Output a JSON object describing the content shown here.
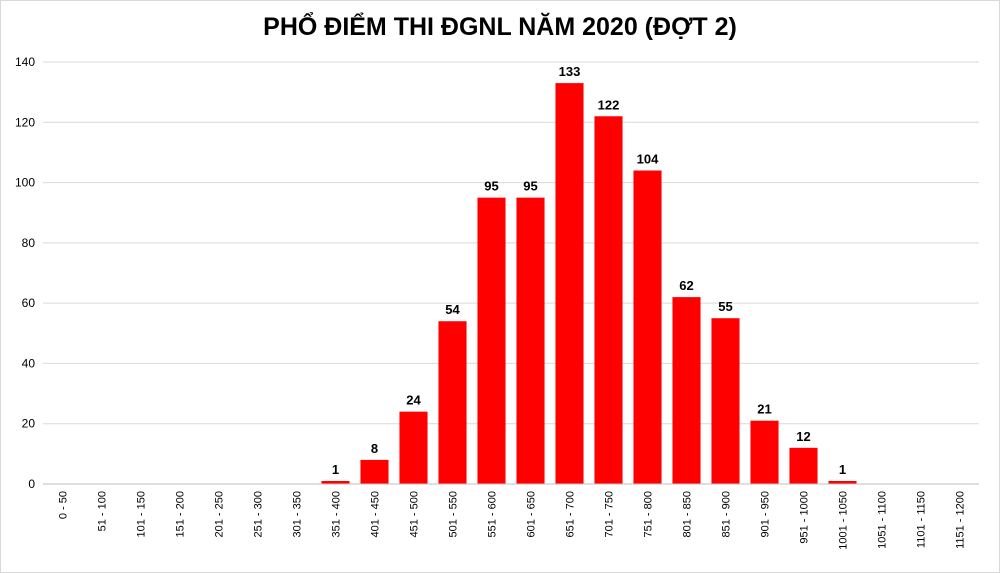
{
  "chart_data": {
    "type": "bar",
    "title": "PHỔ ĐIỂM THI ĐGNL NĂM 2020 (ĐỢT 2)",
    "xlabel": "",
    "ylabel": "",
    "ylim": [
      0,
      140
    ],
    "yticks": [
      0,
      20,
      40,
      60,
      80,
      100,
      120,
      140
    ],
    "grid": true,
    "legend": "none",
    "bar_color": "#ff0000",
    "categories": [
      "0 - 50",
      "51 - 100",
      "101 - 150",
      "151 - 200",
      "201 - 250",
      "251 - 300",
      "301 - 350",
      "351 - 400",
      "401 - 450",
      "451 - 500",
      "501 - 550",
      "551 - 600",
      "601 - 650",
      "651 - 700",
      "701 - 750",
      "751 - 800",
      "801 - 850",
      "851 - 900",
      "901 - 950",
      "951 - 1000",
      "1001 - 1050",
      "1051 - 1100",
      "1101 - 1150",
      "1151 - 1200"
    ],
    "values": [
      0,
      0,
      0,
      0,
      0,
      0,
      0,
      1,
      8,
      24,
      54,
      95,
      95,
      133,
      122,
      104,
      62,
      55,
      21,
      12,
      1,
      0,
      0,
      0
    ]
  }
}
